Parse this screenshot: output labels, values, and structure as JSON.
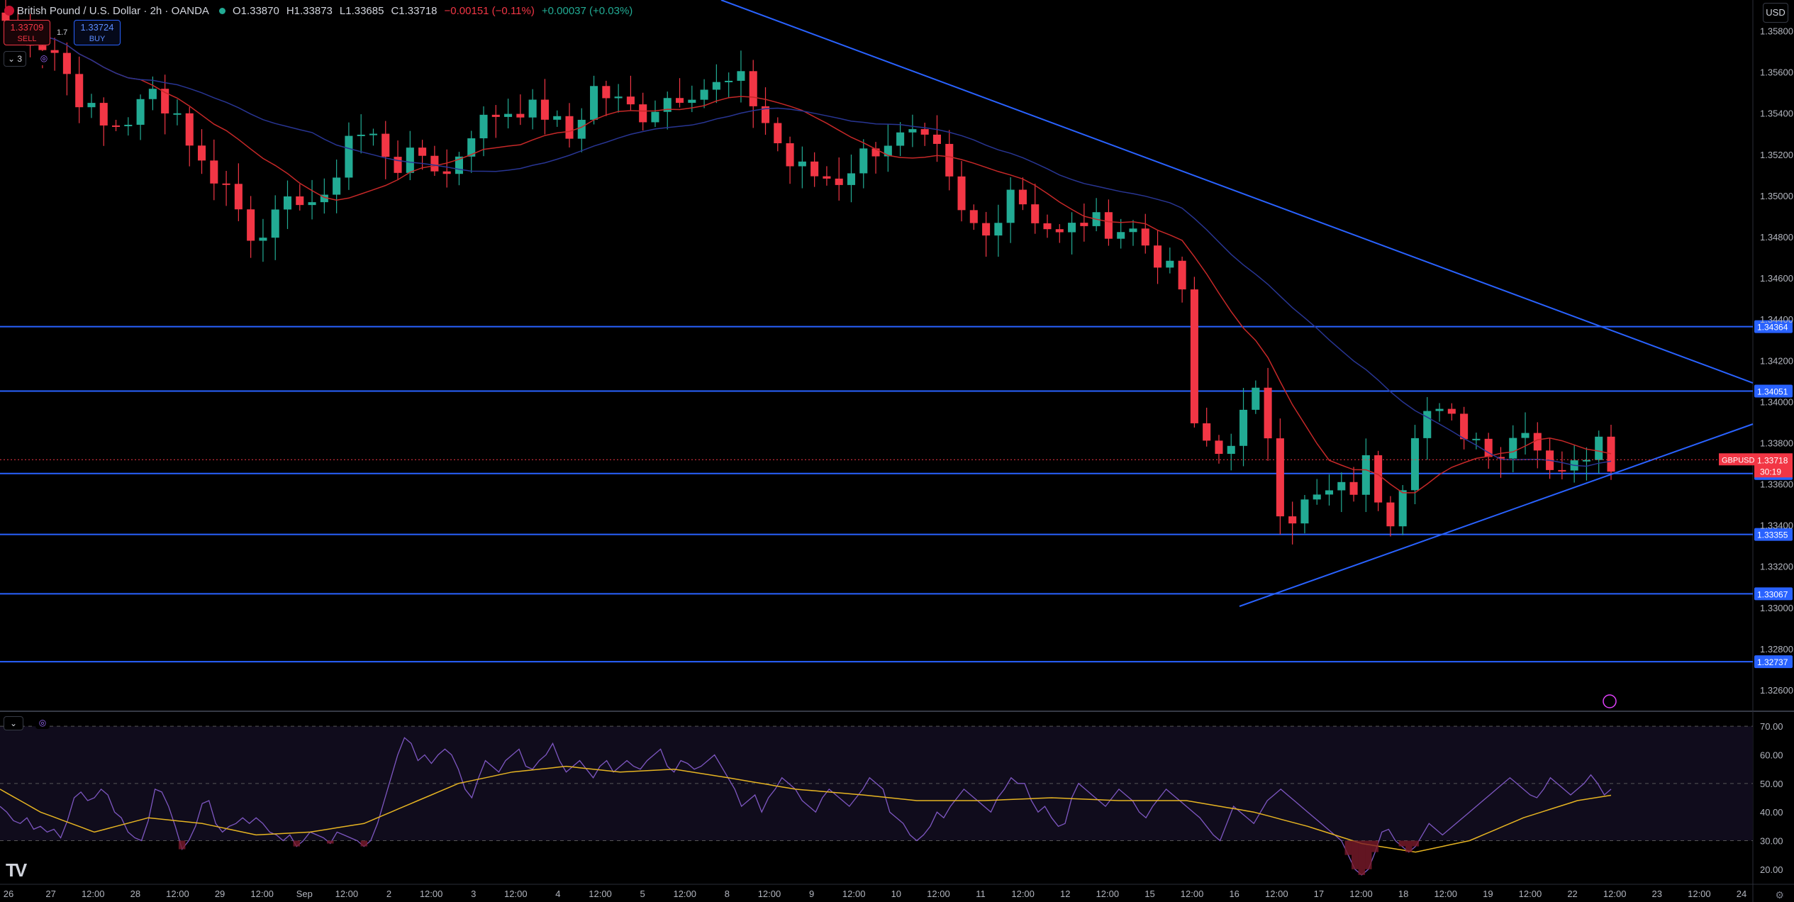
{
  "header": {
    "symbol_title": "British Pound / U.S. Dollar · 2h · OANDA",
    "open": "O1.33870",
    "high": "H1.33873",
    "low": "L1.33685",
    "close": "C1.33718",
    "change": "−0.00151 (−0.11%)",
    "extra": "+0.00037 (+0.03%)"
  },
  "trade": {
    "sell_price": "1.33709",
    "sell_label": "SELL",
    "buy_price": "1.33724",
    "buy_label": "BUY",
    "spread": "1.7"
  },
  "indicator_count": "3",
  "currency": "USD",
  "logo": "TV",
  "colors": {
    "bull": "#22ab94",
    "bear": "#f23645",
    "level": "#2962ff",
    "ma_red": "#c62828",
    "ma_blue": "#283593",
    "rsi": "#7e57c2",
    "rsi_ma": "#e6b422"
  },
  "chart_data": [
    {
      "type": "candlestick",
      "symbol": "GBPUSD",
      "ylim": [
        1.325,
        1.3595
      ],
      "yticks": [
        "1.32600",
        "1.32800",
        "1.33000",
        "1.33200",
        "1.33400",
        "1.33600",
        "1.33800",
        "1.34000",
        "1.34200",
        "1.34400",
        "1.34600",
        "1.34800",
        "1.35000",
        "1.35200",
        "1.35400",
        "1.35600",
        "1.35800"
      ],
      "xticks": [
        "26",
        "27",
        "12:00",
        "28",
        "12:00",
        "29",
        "12:00",
        "Sep",
        "12:00",
        "2",
        "12:00",
        "3",
        "12:00",
        "4",
        "12:00",
        "5",
        "12:00",
        "8",
        "12:00",
        "9",
        "12:00",
        "10",
        "12:00",
        "11",
        "12:00",
        "12",
        "12:00",
        "15",
        "12:00",
        "16",
        "12:00",
        "17",
        "12:00",
        "18",
        "12:00",
        "19",
        "12:00",
        "22",
        "12:00",
        "23",
        "12:00",
        "24"
      ],
      "last_price": {
        "label": "GBPUSD",
        "value": "1.33718",
        "countdown": "30:19"
      },
      "horizontal_levels": [
        "1.34364",
        "1.34051",
        "1.33651",
        "1.33355",
        "1.33067",
        "1.32737"
      ],
      "trendlines": [
        {
          "from": [
            "Aug 29 02:00",
            1.365
          ],
          "to": [
            "Sep 24 00:00",
            1.341
          ]
        },
        {
          "from": [
            "Sep 16 12:00",
            1.33
          ],
          "to": [
            "Sep 24 00:00",
            1.339
          ]
        }
      ],
      "ma_red_desc": "shorter moving average",
      "ma_blue_desc": "longer moving average",
      "anchors": [
        [
          0,
          1.3585
        ],
        [
          4,
          1.357
        ],
        [
          6,
          1.3548
        ],
        [
          8,
          1.3533
        ],
        [
          10,
          1.3537
        ],
        [
          12,
          1.355
        ],
        [
          14,
          1.354
        ],
        [
          16,
          1.3515
        ],
        [
          18,
          1.3505
        ],
        [
          20,
          1.3482
        ],
        [
          22,
          1.3488
        ],
        [
          24,
          1.35
        ],
        [
          26,
          1.3495
        ],
        [
          28,
          1.353
        ],
        [
          30,
          1.3528
        ],
        [
          32,
          1.3515
        ],
        [
          34,
          1.352
        ],
        [
          36,
          1.351
        ],
        [
          38,
          1.3532
        ],
        [
          40,
          1.354
        ],
        [
          42,
          1.3543
        ],
        [
          44,
          1.354
        ],
        [
          46,
          1.3528
        ],
        [
          48,
          1.3552
        ],
        [
          50,
          1.3545
        ],
        [
          52,
          1.354
        ],
        [
          54,
          1.3548
        ],
        [
          56,
          1.3552
        ],
        [
          58,
          1.3553
        ],
        [
          60,
          1.3555
        ],
        [
          62,
          1.3536
        ],
        [
          64,
          1.3515
        ],
        [
          66,
          1.351
        ],
        [
          68,
          1.3508
        ],
        [
          70,
          1.352
        ],
        [
          72,
          1.3527
        ],
        [
          74,
          1.3528
        ],
        [
          76,
          1.352
        ],
        [
          78,
          1.349
        ],
        [
          80,
          1.348
        ],
        [
          82,
          1.3505
        ],
        [
          84,
          1.349
        ],
        [
          86,
          1.348
        ],
        [
          88,
          1.3488
        ],
        [
          90,
          1.3485
        ],
        [
          92,
          1.3483
        ],
        [
          94,
          1.347
        ],
        [
          96,
          1.3455
        ],
        [
          97,
          1.3385
        ],
        [
          98,
          1.338
        ],
        [
          99,
          1.3375
        ],
        [
          100,
          1.3383
        ],
        [
          102,
          1.3402
        ],
        [
          103,
          1.3385
        ],
        [
          104,
          1.335
        ],
        [
          105,
          1.3345
        ],
        [
          106,
          1.335
        ],
        [
          108,
          1.3355
        ],
        [
          110,
          1.3358
        ],
        [
          111,
          1.337
        ],
        [
          112,
          1.3355
        ],
        [
          113,
          1.3345
        ],
        [
          114,
          1.3362
        ],
        [
          115,
          1.3388
        ],
        [
          116,
          1.3395
        ],
        [
          118,
          1.339
        ],
        [
          120,
          1.3382
        ],
        [
          122,
          1.3375
        ],
        [
          124,
          1.339
        ],
        [
          125,
          1.3378
        ],
        [
          126,
          1.337
        ],
        [
          128,
          1.3368
        ],
        [
          129,
          1.3376
        ],
        [
          130,
          1.3387
        ],
        [
          131,
          1.3372
        ]
      ],
      "candle_count": 132
    },
    {
      "type": "line",
      "name": "RSI",
      "ylim": [
        15,
        75
      ],
      "yticks": [
        "70.00",
        "60.00",
        "50.00",
        "40.00",
        "30.00",
        "20.00"
      ],
      "bands": [
        30,
        50,
        70
      ],
      "rsi": [
        42,
        40,
        37,
        36,
        38,
        34,
        35,
        33,
        34,
        31,
        37,
        45,
        47,
        44,
        45,
        48,
        46,
        40,
        38,
        33,
        31,
        30,
        37,
        48,
        47,
        42,
        35,
        27,
        30,
        35,
        43,
        44,
        36,
        33,
        35,
        36,
        38,
        36,
        38,
        36,
        33,
        32,
        30,
        32,
        28,
        30,
        33,
        32,
        31,
        29,
        33,
        32,
        31,
        30,
        28,
        30,
        36,
        44,
        52,
        60,
        66,
        64,
        58,
        60,
        57,
        60,
        62,
        60,
        55,
        48,
        45,
        52,
        58,
        56,
        54,
        58,
        60,
        62,
        56,
        55,
        58,
        60,
        64,
        58,
        54,
        56,
        58,
        55,
        52,
        56,
        58,
        54,
        56,
        58,
        56,
        55,
        58,
        60,
        62,
        56,
        54,
        58,
        57,
        55,
        56,
        58,
        60,
        56,
        52,
        48,
        42,
        44,
        46,
        40,
        45,
        48,
        52,
        50,
        48,
        44,
        42,
        40,
        45,
        48,
        46,
        44,
        42,
        45,
        48,
        52,
        50,
        48,
        40,
        38,
        36,
        32,
        30,
        32,
        35,
        40,
        38,
        42,
        45,
        48,
        46,
        44,
        42,
        40,
        45,
        48,
        52,
        50,
        50,
        44,
        40,
        42,
        38,
        35,
        36,
        45,
        50,
        48,
        46,
        44,
        42,
        45,
        48,
        46,
        44,
        40,
        38,
        42,
        45,
        48,
        46,
        44,
        42,
        40,
        38,
        35,
        32,
        30,
        36,
        42,
        40,
        38,
        36,
        40,
        44,
        46,
        48,
        46,
        44,
        42,
        40,
        38,
        36,
        34,
        32,
        30,
        25,
        20,
        18,
        20,
        26,
        33,
        34,
        30,
        28,
        26,
        28,
        32,
        36,
        34,
        32,
        34,
        36,
        38,
        40,
        42,
        44,
        46,
        48,
        50,
        52,
        50,
        48,
        46,
        45,
        48,
        52,
        50,
        48,
        46,
        48,
        50,
        53,
        50,
        46,
        48
      ],
      "rsi_ma_anchors": [
        [
          0,
          48
        ],
        [
          6,
          40
        ],
        [
          14,
          33
        ],
        [
          22,
          38
        ],
        [
          30,
          36
        ],
        [
          38,
          32
        ],
        [
          46,
          33
        ],
        [
          54,
          36
        ],
        [
          60,
          42
        ],
        [
          68,
          50
        ],
        [
          76,
          54
        ],
        [
          84,
          56
        ],
        [
          92,
          54
        ],
        [
          100,
          55
        ],
        [
          108,
          52
        ],
        [
          118,
          48
        ],
        [
          128,
          46
        ],
        [
          136,
          44
        ],
        [
          146,
          44
        ],
        [
          156,
          45
        ],
        [
          166,
          44
        ],
        [
          176,
          44
        ],
        [
          186,
          40
        ],
        [
          194,
          35
        ],
        [
          202,
          29
        ],
        [
          210,
          26
        ],
        [
          218,
          30
        ],
        [
          226,
          38
        ],
        [
          234,
          44
        ],
        [
          242,
          47
        ],
        [
          250,
          47
        ]
      ]
    }
  ]
}
